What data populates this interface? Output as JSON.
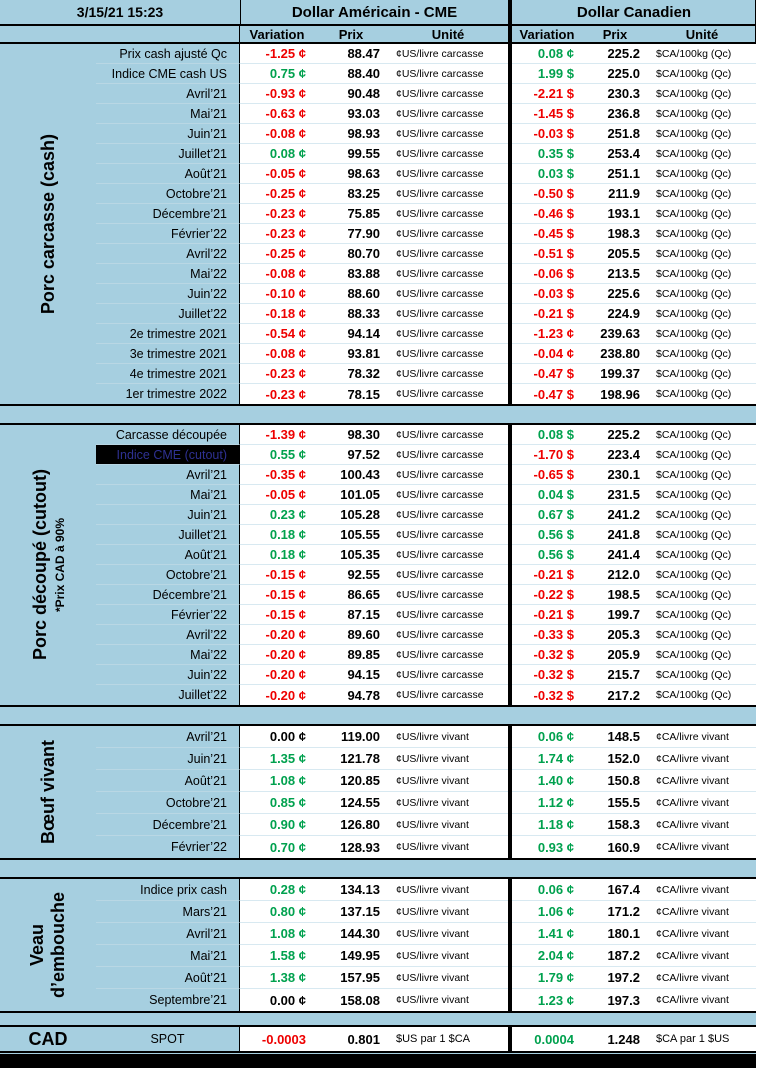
{
  "timestamp": "3/15/21 15:23",
  "header": {
    "us_title": "Dollar Américain - CME",
    "ca_title": "Dollar Canadien",
    "columns": [
      "Variation",
      "Prix",
      "Unité"
    ]
  },
  "colors": {
    "background_blue": "#A6CFE0",
    "cell_white": "#FFFFFF",
    "positive_green": "#00A14E",
    "negative_red": "#EE0000",
    "highlight_black": "#000000"
  },
  "sections": [
    {
      "id": "porc-carcasse-cash",
      "label_lines": [
        "Porc carcasse (cash)"
      ],
      "sublabel": "",
      "us_unit": "¢US/livre carcasse",
      "ca_unit": "$CA/100kg (Qc)",
      "rows": [
        {
          "label": "Prix cash ajusté Qc",
          "uv": "-1.25 ¢",
          "up": "88.47",
          "cv": "0.08 ¢",
          "cp": "225.2"
        },
        {
          "label": "Indice CME cash US",
          "uv": "0.75 ¢",
          "up": "88.40",
          "cv": "1.99 $",
          "cp": "225.0"
        },
        {
          "label": "Avril’21",
          "uv": "-0.93 ¢",
          "up": "90.48",
          "cv": "-2.21 $",
          "cp": "230.3"
        },
        {
          "label": "Mai’21",
          "uv": "-0.63 ¢",
          "up": "93.03",
          "cv": "-1.45 $",
          "cp": "236.8"
        },
        {
          "label": "Juin’21",
          "uv": "-0.08 ¢",
          "up": "98.93",
          "cv": "-0.03 $",
          "cp": "251.8"
        },
        {
          "label": "Juillet’21",
          "uv": "0.08 ¢",
          "up": "99.55",
          "cv": "0.35 $",
          "cp": "253.4"
        },
        {
          "label": "Août’21",
          "uv": "-0.05 ¢",
          "up": "98.63",
          "cv": "0.03 $",
          "cp": "251.1"
        },
        {
          "label": "Octobre’21",
          "uv": "-0.25 ¢",
          "up": "83.25",
          "cv": "-0.50 $",
          "cp": "211.9"
        },
        {
          "label": "Décembre’21",
          "uv": "-0.23 ¢",
          "up": "75.85",
          "cv": "-0.46 $",
          "cp": "193.1"
        },
        {
          "label": "Février’22",
          "uv": "-0.23 ¢",
          "up": "77.90",
          "cv": "-0.45 $",
          "cp": "198.3"
        },
        {
          "label": "Avril’22",
          "uv": "-0.25 ¢",
          "up": "80.70",
          "cv": "-0.51 $",
          "cp": "205.5"
        },
        {
          "label": "Mai’22",
          "uv": "-0.08 ¢",
          "up": "83.88",
          "cv": "-0.06 $",
          "cp": "213.5"
        },
        {
          "label": "Juin’22",
          "uv": "-0.10 ¢",
          "up": "88.60",
          "cv": "-0.03 $",
          "cp": "225.6"
        },
        {
          "label": "Juillet’22",
          "uv": "-0.18 ¢",
          "up": "88.33",
          "cv": "-0.21 $",
          "cp": "224.9"
        },
        {
          "label": "2e trimestre 2021",
          "uv": "-0.54 ¢",
          "up": "94.14",
          "cv": "-1.23 ¢",
          "cp": "239.63"
        },
        {
          "label": "3e trimestre 2021",
          "uv": "-0.08 ¢",
          "up": "93.81",
          "cv": "-0.04 ¢",
          "cp": "238.80"
        },
        {
          "label": "4e trimestre 2021",
          "uv": "-0.23 ¢",
          "up": "78.32",
          "cv": "-0.47 $",
          "cp": "199.37"
        },
        {
          "label": "1er trimestre 2022",
          "uv": "-0.23 ¢",
          "up": "78.15",
          "cv": "-0.47 $",
          "cp": "198.96"
        }
      ]
    },
    {
      "id": "porc-decoupe-cutout",
      "label_lines": [
        "Porc découpé (cutout)"
      ],
      "sublabel": "*Prix CAD à 90%",
      "us_unit": "¢US/livre carcasse",
      "ca_unit": "$CA/100kg (Qc)",
      "rows": [
        {
          "label": "Carcasse découpée",
          "uv": "-1.39 ¢",
          "up": "98.30",
          "cv": "0.08 $",
          "cp": "225.2"
        },
        {
          "label": "Indice CME (cutout)",
          "uv": "0.55 ¢",
          "up": "97.52",
          "cv": "-1.70 $",
          "cp": "223.4",
          "hl": true
        },
        {
          "label": "Avril’21",
          "uv": "-0.35 ¢",
          "up": "100.43",
          "cv": "-0.65 $",
          "cp": "230.1"
        },
        {
          "label": "Mai’21",
          "uv": "-0.05 ¢",
          "up": "101.05",
          "cv": "0.04 $",
          "cp": "231.5"
        },
        {
          "label": "Juin’21",
          "uv": "0.23 ¢",
          "up": "105.28",
          "cv": "0.67 $",
          "cp": "241.2"
        },
        {
          "label": "Juillet’21",
          "uv": "0.18 ¢",
          "up": "105.55",
          "cv": "0.56 $",
          "cp": "241.8"
        },
        {
          "label": "Août’21",
          "uv": "0.18 ¢",
          "up": "105.35",
          "cv": "0.56 $",
          "cp": "241.4"
        },
        {
          "label": "Octobre’21",
          "uv": "-0.15 ¢",
          "up": "92.55",
          "cv": "-0.21 $",
          "cp": "212.0"
        },
        {
          "label": "Décembre’21",
          "uv": "-0.15 ¢",
          "up": "86.65",
          "cv": "-0.22 $",
          "cp": "198.5"
        },
        {
          "label": "Février’22",
          "uv": "-0.15 ¢",
          "up": "87.15",
          "cv": "-0.21 $",
          "cp": "199.7"
        },
        {
          "label": "Avril’22",
          "uv": "-0.20 ¢",
          "up": "89.60",
          "cv": "-0.33 $",
          "cp": "205.3"
        },
        {
          "label": "Mai’22",
          "uv": "-0.20 ¢",
          "up": "89.85",
          "cv": "-0.32 $",
          "cp": "205.9"
        },
        {
          "label": "Juin’22",
          "uv": "-0.20 ¢",
          "up": "94.15",
          "cv": "-0.32 $",
          "cp": "215.7"
        },
        {
          "label": "Juillet’22",
          "uv": "-0.20 ¢",
          "up": "94.78",
          "cv": "-0.32 $",
          "cp": "217.2"
        }
      ]
    },
    {
      "id": "boeuf-vivant",
      "label_lines": [
        "Bœuf vivant"
      ],
      "sublabel": "",
      "us_unit": "¢US/livre vivant",
      "ca_unit": "¢CA/livre vivant",
      "rows": [
        {
          "label": "Avril’21",
          "uv": "0.00 ¢",
          "up": "119.00",
          "cv": "0.06 ¢",
          "cp": "148.5"
        },
        {
          "label": "Juin’21",
          "uv": "1.35 ¢",
          "up": "121.78",
          "cv": "1.74 ¢",
          "cp": "152.0"
        },
        {
          "label": "Août’21",
          "uv": "1.08 ¢",
          "up": "120.85",
          "cv": "1.40 ¢",
          "cp": "150.8"
        },
        {
          "label": "Octobre’21",
          "uv": "0.85 ¢",
          "up": "124.55",
          "cv": "1.12 ¢",
          "cp": "155.5"
        },
        {
          "label": "Décembre’21",
          "uv": "0.90 ¢",
          "up": "126.80",
          "cv": "1.18 ¢",
          "cp": "158.3"
        },
        {
          "label": "Février’22",
          "uv": "0.70 ¢",
          "up": "128.93",
          "cv": "0.93 ¢",
          "cp": "160.9"
        }
      ]
    },
    {
      "id": "veau-embouche",
      "label_lines": [
        "Veau",
        "d’embouche"
      ],
      "sublabel": "",
      "us_unit": "¢US/livre vivant",
      "ca_unit": "¢CA/livre vivant",
      "rows": [
        {
          "label": "Indice prix cash",
          "uv": "0.28 ¢",
          "up": "134.13",
          "cv": "0.06 ¢",
          "cp": "167.4"
        },
        {
          "label": "Mars’21",
          "uv": "0.80 ¢",
          "up": "137.15",
          "cv": "1.06 ¢",
          "cp": "171.2"
        },
        {
          "label": "Avril’21",
          "uv": "1.08 ¢",
          "up": "144.30",
          "cv": "1.41 ¢",
          "cp": "180.1"
        },
        {
          "label": "Mai’21",
          "uv": "1.58 ¢",
          "up": "149.95",
          "cv": "2.04 ¢",
          "cp": "187.2"
        },
        {
          "label": "Août’21",
          "uv": "1.38 ¢",
          "up": "157.95",
          "cv": "1.79 ¢",
          "cp": "197.2"
        },
        {
          "label": "Septembre’21",
          "uv": "0.00 ¢",
          "up": "158.08",
          "cv": "1.23 ¢",
          "cp": "197.3"
        }
      ]
    }
  ],
  "cad": {
    "section_label": "CAD",
    "row_label": "SPOT",
    "us": {
      "variation": "-0.0003",
      "price": "0.801",
      "unit": "$US par 1 $CA"
    },
    "ca": {
      "variation": "0.0004",
      "price": "1.248",
      "unit": "$CA par 1 $US"
    }
  }
}
